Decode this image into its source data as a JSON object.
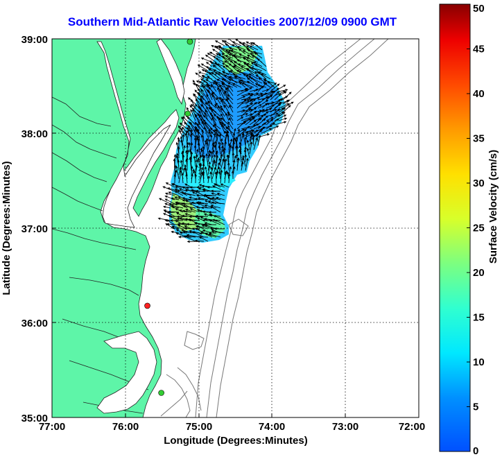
{
  "title": "Southern Mid-Atlantic Raw Velocities 2007/12/09 0900 GMT",
  "map": {
    "x_label": "Longitude (Degrees:Minutes)",
    "y_label": "Latitude (Degrees:Minutes)",
    "lon_ticks": [
      "77:00",
      "76:00",
      "75:00",
      "74:00",
      "73:00",
      "72:00"
    ],
    "lat_ticks": [
      "39:00",
      "38:00",
      "37:00",
      "36:00",
      "35:00"
    ],
    "lon_range_west": [
      77,
      72
    ],
    "lat_range": [
      35,
      39
    ],
    "grid": "dotted",
    "land_color": "#5ef5a8",
    "station_markers": [
      {
        "lon": 75.12,
        "lat": 38.97,
        "color": "#33cc33"
      },
      {
        "lon": 75.15,
        "lat": 38.21,
        "color": "#33cc33"
      },
      {
        "lon": 75.7,
        "lat": 36.18,
        "color": "#ff2222"
      },
      {
        "lon": 75.51,
        "lat": 35.26,
        "color": "#33cc33"
      }
    ]
  },
  "colorbar": {
    "label": "Surface Velocity (cm/s)",
    "min": 0,
    "max": 50,
    "ticks": [
      "0",
      "5",
      "10",
      "15",
      "20",
      "25",
      "30",
      "35",
      "40",
      "45",
      "50"
    ],
    "colormap": "jet"
  }
}
